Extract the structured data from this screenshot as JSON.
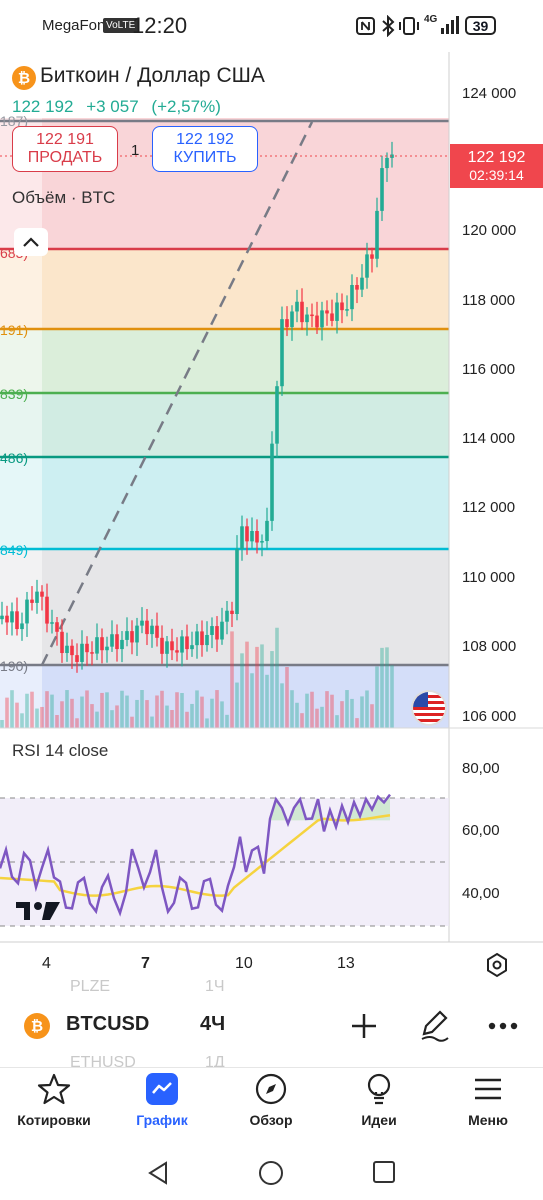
{
  "status_bar": {
    "carrier": "MegaFon",
    "volte": "VoLTE",
    "time": "12:20",
    "network": "4G",
    "battery": "39"
  },
  "header": {
    "symbol_title": "Биткоин / Доллар США",
    "coin_letter": "₿",
    "last_price": "122 192",
    "change": "+3 057",
    "change_pct": "(+2,57%)",
    "sell_price": "122 191",
    "sell_label": "ПРОДАТЬ",
    "quantity": "1",
    "buy_price": "122 192",
    "buy_label": "КУПИТЬ",
    "volume_label": "Объём · BTC"
  },
  "current_price": {
    "value": "122 192",
    "countdown": "02:39:14",
    "color": "#f0464d"
  },
  "price_axis": [
    "124 000",
    "122 000",
    "120 000",
    "118 000",
    "116 000",
    "114 000",
    "112 000",
    "110 000",
    "108 000",
    "106 000"
  ],
  "fib_labels": [
    {
      "text": "187)",
      "color": "#9598a1"
    },
    {
      "text": "683)",
      "color": "#d93c49"
    },
    {
      "text": "191)",
      "color": "#e0900e"
    },
    {
      "text": "839)",
      "color": "#4caf50"
    },
    {
      "text": "486)",
      "color": "#089981"
    },
    {
      "text": "849)",
      "color": "#00bcd4"
    },
    {
      "text": "190)",
      "color": "#787b86"
    }
  ],
  "rsi": {
    "label": "RSI 14 close",
    "axis": [
      "80,00",
      "60,00",
      "40,00"
    ]
  },
  "time_axis": [
    "4",
    "7",
    "10",
    "13"
  ],
  "toolbar": {
    "symbol": "BTCUSD",
    "interval": "4Ч",
    "ghost_above_symbol": "PLZE",
    "ghost_above_interval": "1Ч",
    "ghost_below_symbol": "ETHUSD",
    "ghost_below_interval": "1Д"
  },
  "bottom_nav": [
    {
      "label": "Котировки",
      "icon": "star-icon"
    },
    {
      "label": "График",
      "icon": "chart-icon"
    },
    {
      "label": "Обзор",
      "icon": "compass-icon"
    },
    {
      "label": "Идеи",
      "icon": "lightbulb-icon"
    },
    {
      "label": "Меню",
      "icon": "menu-icon"
    }
  ],
  "colors": {
    "up": "#22ab94",
    "down": "#f23645",
    "accent": "#2962ff",
    "rsi_line": "#7e57c2",
    "rsi_ma": "#f5d33f"
  }
}
